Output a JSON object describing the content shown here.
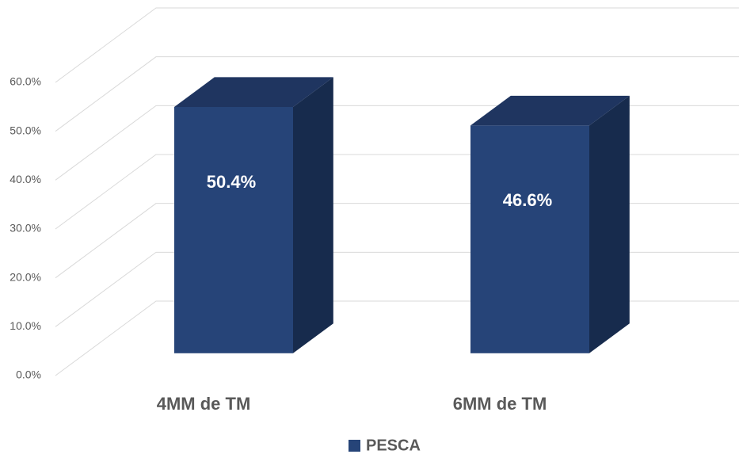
{
  "chart_data": {
    "type": "bar3d",
    "categories": [
      "4MM de TM",
      "6MM de TM"
    ],
    "series": [
      {
        "name": "PESCA",
        "color": "#264478",
        "values": [
          50.4,
          46.6
        ],
        "value_labels": [
          "50.4%",
          "46.6%"
        ]
      }
    ],
    "ylim": [
      0,
      60
    ],
    "yticks": [
      {
        "value": 0,
        "label": "0.0%"
      },
      {
        "value": 10,
        "label": "10.0%"
      },
      {
        "value": 20,
        "label": "20.0%"
      },
      {
        "value": 30,
        "label": "30.0%"
      },
      {
        "value": 40,
        "label": "40.0%"
      },
      {
        "value": 50,
        "label": "50.0%"
      },
      {
        "value": 60,
        "label": "60.0%"
      }
    ],
    "grid": true,
    "legend": "bottom"
  }
}
